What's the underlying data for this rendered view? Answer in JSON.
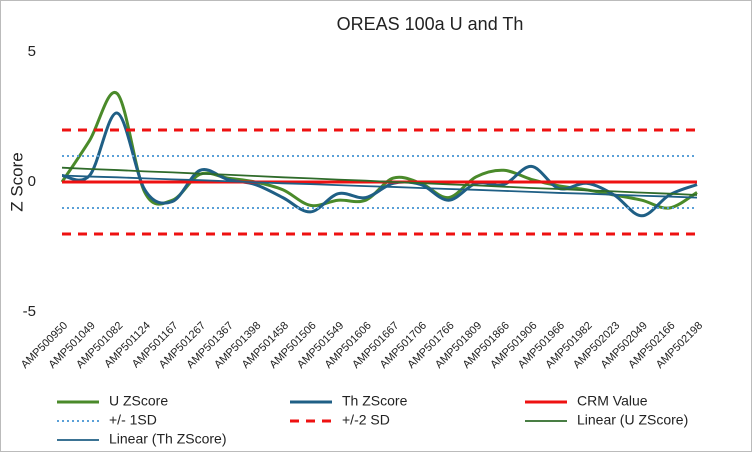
{
  "chart_data": {
    "type": "line",
    "title": "OREAS 100a U and Th",
    "y_label": "Z Score",
    "categories": [
      "AMP500950",
      "AMP501049",
      "AMP501082",
      "AMP501124",
      "AMP501167",
      "AMP501267",
      "AMP501367",
      "AMP501398",
      "AMP501458",
      "AMP501506",
      "AMP501549",
      "AMP501606",
      "AMP501667",
      "AMP501706",
      "AMP501766",
      "AMP501809",
      "AMP501866",
      "AMP501906",
      "AMP501966",
      "AMP501982",
      "AMP502023",
      "AMP502049",
      "AMP502166",
      "AMP502198"
    ],
    "ylim": [
      -5,
      5
    ],
    "yticks": [
      -5,
      0,
      5
    ],
    "series": [
      {
        "name": "U ZScore",
        "color": "#4a8a2a",
        "width": 3,
        "smooth": true,
        "values": [
          0,
          1.6,
          3.4,
          -0.4,
          -0.7,
          0.3,
          0.15,
          0,
          -0.3,
          -0.9,
          -0.7,
          -0.7,
          0.15,
          -0.05,
          -0.6,
          0.2,
          0.45,
          0.1,
          -0.15,
          -0.3,
          -0.5,
          -0.7,
          -1.0,
          -0.4
        ]
      },
      {
        "name": "Th ZScore",
        "color": "#1f5f85",
        "width": 3,
        "smooth": true,
        "values": [
          0.25,
          0.25,
          2.65,
          -0.3,
          -0.75,
          0.45,
          0.1,
          -0.1,
          -0.6,
          -1.15,
          -0.45,
          -0.6,
          -0.05,
          -0.1,
          -0.7,
          -0.05,
          -0.1,
          0.6,
          -0.25,
          -0.05,
          -0.5,
          -1.3,
          -0.5,
          -0.1
        ]
      },
      {
        "name": "CRM Value",
        "color": "#ee1111",
        "width": 3,
        "levels": [
          0
        ]
      },
      {
        "name": "+/- 1SD",
        "color": "#5aa0d8",
        "width": 2,
        "dash": "2 3",
        "levels": [
          1,
          -1
        ]
      },
      {
        "name": "+/-2 SD",
        "color": "#ee1111",
        "width": 3,
        "dash": "9 7",
        "levels": [
          2,
          -2
        ]
      },
      {
        "name": "Linear (U ZScore)",
        "color": "#2f6b2a",
        "width": 1.8,
        "smooth": false,
        "values": [
          0.55,
          0.5,
          0.46,
          0.41,
          0.37,
          0.32,
          0.28,
          0.23,
          0.18,
          0.14,
          0.09,
          0.05,
          0,
          -0.04,
          -0.09,
          -0.13,
          -0.18,
          -0.23,
          -0.27,
          -0.32,
          -0.36,
          -0.41,
          -0.45,
          -0.5
        ]
      },
      {
        "name": "Linear (Th ZScore)",
        "color": "#1f5f85",
        "width": 1.8,
        "smooth": false,
        "values": [
          0.25,
          0.21,
          0.18,
          0.14,
          0.1,
          0.07,
          0.03,
          -0.01,
          -0.05,
          -0.08,
          -0.12,
          -0.16,
          -0.19,
          -0.23,
          -0.27,
          -0.3,
          -0.34,
          -0.38,
          -0.42,
          -0.45,
          -0.49,
          -0.53,
          -0.56,
          -0.6
        ]
      }
    ]
  }
}
